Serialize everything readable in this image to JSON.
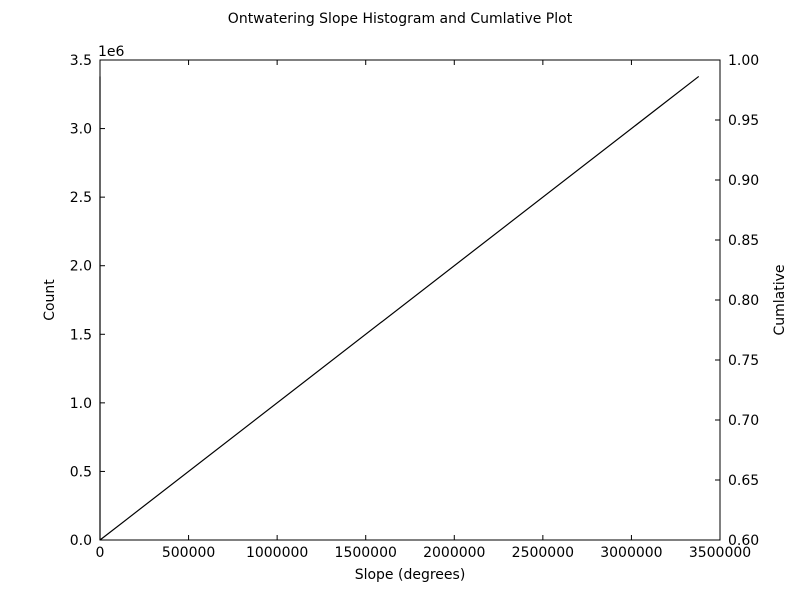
{
  "chart_data": {
    "type": "line",
    "title": "Ontwatering Slope Histogram and Cumlative Plot",
    "xlabel": "Slope (degrees)",
    "ylabel": "Count",
    "y2label": "Cumlative",
    "y_offset_label": "1e6",
    "xlim": [
      0,
      3500000
    ],
    "ylim": [
      0,
      3500000
    ],
    "y2lim": [
      0.6,
      1.0
    ],
    "x_ticks": [
      0,
      500000,
      1000000,
      1500000,
      2000000,
      2500000,
      3000000,
      3500000
    ],
    "x_tick_labels": [
      "0",
      "500000",
      "1000000",
      "1500000",
      "2000000",
      "2500000",
      "3000000",
      "3500000"
    ],
    "y_ticks": [
      0,
      500000,
      1000000,
      1500000,
      2000000,
      2500000,
      3000000,
      3500000
    ],
    "y_tick_labels": [
      "0.0",
      "0.5",
      "1.0",
      "1.5",
      "2.0",
      "2.5",
      "3.0",
      "3.5"
    ],
    "y2_ticks": [
      0.6,
      0.65,
      0.7,
      0.75,
      0.8,
      0.85,
      0.9,
      0.95,
      1.0
    ],
    "y2_tick_labels": [
      "0.60",
      "0.65",
      "0.70",
      "0.75",
      "0.80",
      "0.85",
      "0.90",
      "0.95",
      "1.00"
    ],
    "grid": false,
    "series": [
      {
        "axis": "left",
        "color": "#000000",
        "points": [
          [
            0,
            0
          ],
          [
            3380000,
            3380000
          ]
        ]
      },
      {
        "axis": "left",
        "color": "#000000",
        "points": [
          [
            0,
            0
          ],
          [
            0,
            3380000
          ]
        ]
      }
    ]
  }
}
